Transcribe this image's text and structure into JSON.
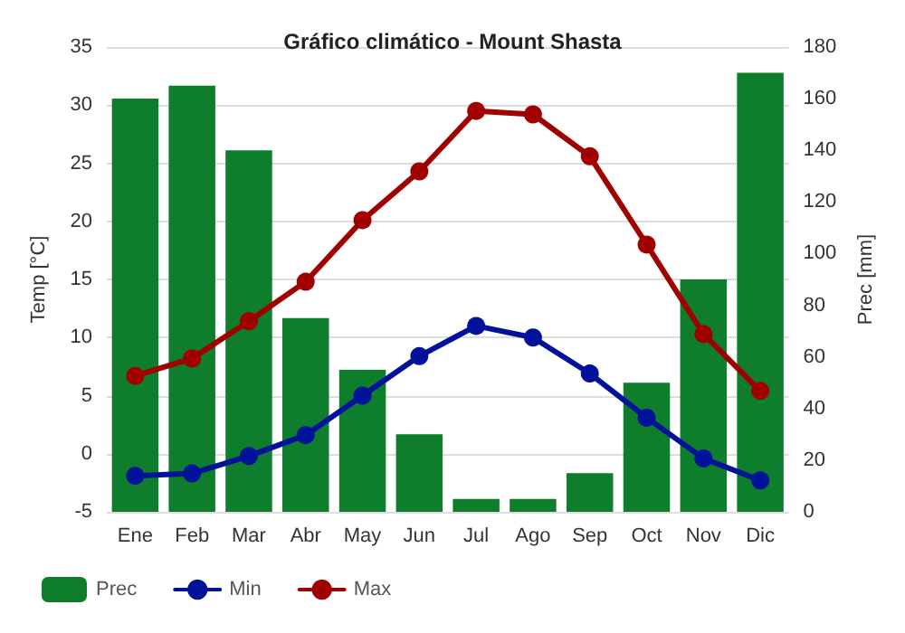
{
  "chart_data": {
    "type": "bar",
    "title": "Gráfico climático - Mount Shasta",
    "ylabel": "Temp [°C]",
    "y2label": "Prec [mm]",
    "categories": [
      "Ene",
      "Feb",
      "Mar",
      "Abr",
      "May",
      "Jun",
      "Jul",
      "Ago",
      "Sep",
      "Oct",
      "Nov",
      "Dic"
    ],
    "series": [
      {
        "name": "Prec",
        "axis": "y2",
        "color": "#0e7d2c",
        "values": [
          160,
          165,
          140,
          75,
          55,
          30,
          5,
          5,
          15,
          50,
          90,
          170
        ]
      },
      {
        "name": "Min",
        "type": "line",
        "color": "#00129a",
        "marker": "circle",
        "values": [
          -1.9,
          -1.7,
          -0.2,
          1.6,
          5.0,
          8.4,
          11.0,
          10.0,
          6.9,
          3.1,
          -0.4,
          -2.3
        ]
      },
      {
        "name": "Max",
        "type": "line",
        "color": "#a00000",
        "marker": "circle",
        "values": [
          6.7,
          8.2,
          11.4,
          14.8,
          20.1,
          24.3,
          29.5,
          29.2,
          25.6,
          18.0,
          10.3,
          5.4
        ]
      }
    ],
    "ylim": [
      -5,
      35
    ],
    "yticks": [
      -5,
      0,
      5,
      10,
      15,
      20,
      25,
      30,
      35
    ],
    "y2lim": [
      0,
      180
    ],
    "y2ticks": [
      0,
      20,
      40,
      60,
      80,
      100,
      120,
      140,
      160,
      180
    ],
    "grid": "y",
    "legend": "bottom left"
  }
}
